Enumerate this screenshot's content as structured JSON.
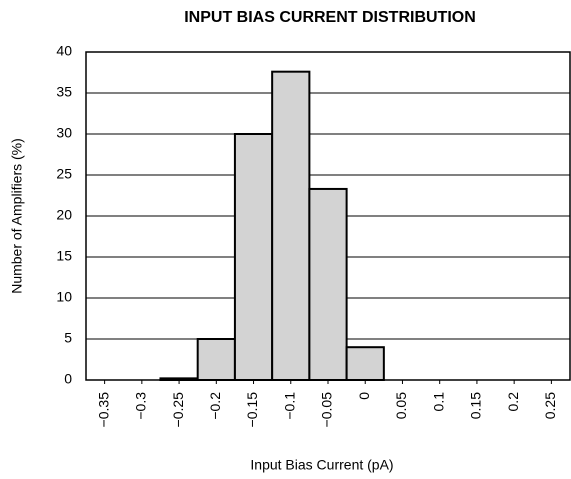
{
  "chart_data": {
    "type": "histogram",
    "title": "INPUT BIAS CURRENT DISTRIBUTION",
    "x_label": "Input Bias Current (pA)",
    "y_label": "Number of Amplifiers (%)",
    "bins": [
      -0.375,
      -0.325,
      -0.275,
      -0.225,
      -0.175,
      -0.125,
      -0.075,
      -0.025,
      0.025,
      0.075,
      0.125,
      0.175,
      0.225,
      0.275
    ],
    "values": [
      0,
      0,
      0.2,
      5,
      30,
      37.6,
      23.3,
      4,
      0,
      0,
      0,
      0,
      0
    ],
    "color": "#d3d3d3",
    "xlim": [
      -0.375,
      0.275
    ],
    "xticks": [
      {
        "value": -0.35,
        "label": "−0.35"
      },
      {
        "value": -0.3,
        "label": "−0.3"
      },
      {
        "value": -0.25,
        "label": "−0.25"
      },
      {
        "value": -0.2,
        "label": "−0.2"
      },
      {
        "value": -0.15,
        "label": "−0.15"
      },
      {
        "value": -0.1,
        "label": "−0.1"
      },
      {
        "value": -0.05,
        "label": "−0.05"
      },
      0,
      0.05,
      0.1,
      0.15,
      0.2,
      0.25
    ],
    "ylim": [
      0,
      40
    ],
    "yticks": [
      0,
      5,
      10,
      15,
      20,
      25,
      30,
      35,
      40
    ],
    "grid": true
  }
}
